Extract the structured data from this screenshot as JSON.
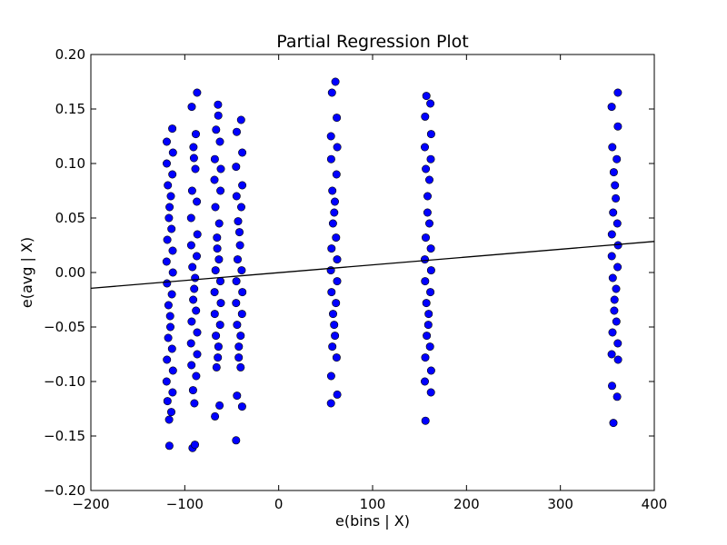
{
  "chart_data": {
    "type": "scatter",
    "title": "Partial Regression Plot",
    "xlabel": "e(bins | X)",
    "ylabel": "e(avg | X)",
    "xlim": [
      -200,
      400
    ],
    "ylim": [
      -0.2,
      0.2
    ],
    "x_ticks": [
      -200,
      -100,
      0,
      100,
      200,
      300,
      400
    ],
    "y_ticks": [
      -0.2,
      -0.15,
      -0.1,
      -0.05,
      0.0,
      0.05,
      0.1,
      0.15,
      0.2
    ],
    "x_tick_labels": [
      "−200",
      "−100",
      "0",
      "100",
      "200",
      "300",
      "400"
    ],
    "y_tick_labels": [
      "−0.20",
      "−0.15",
      "−0.10",
      "−0.05",
      "0.00",
      "0.05",
      "0.10",
      "0.15",
      "0.20"
    ],
    "grid": false,
    "legend": "none",
    "marker_color": "#0000ff",
    "fit_line": {
      "x": [
        -200,
        400
      ],
      "y": [
        -0.0145,
        0.0285
      ],
      "color": "#000000"
    },
    "series": [
      {
        "x_center": -116,
        "y_min": -0.159,
        "y_max": 0.132,
        "y_points": [
          -0.159,
          -0.135,
          -0.128,
          -0.118,
          -0.11,
          -0.1,
          -0.09,
          -0.08,
          -0.07,
          -0.06,
          -0.05,
          -0.04,
          -0.03,
          -0.02,
          -0.01,
          0.0,
          0.01,
          0.02,
          0.03,
          0.04,
          0.05,
          0.06,
          0.07,
          0.08,
          0.09,
          0.1,
          0.11,
          0.12,
          0.132
        ]
      },
      {
        "x_center": -90,
        "y_min": -0.161,
        "y_max": 0.165,
        "y_points": [
          -0.161,
          -0.158,
          -0.12,
          -0.108,
          -0.095,
          -0.085,
          -0.075,
          -0.065,
          -0.055,
          -0.045,
          -0.035,
          -0.025,
          -0.015,
          -0.005,
          0.005,
          0.015,
          0.025,
          0.035,
          0.05,
          0.065,
          0.075,
          0.095,
          0.105,
          0.115,
          0.127,
          0.152,
          0.165
        ]
      },
      {
        "x_center": -65,
        "y_min": -0.132,
        "y_max": 0.154,
        "y_points": [
          -0.132,
          -0.122,
          -0.087,
          -0.078,
          -0.068,
          -0.058,
          -0.048,
          -0.038,
          -0.028,
          -0.018,
          -0.008,
          0.002,
          0.012,
          0.022,
          0.032,
          0.045,
          0.06,
          0.075,
          0.085,
          0.095,
          0.104,
          0.12,
          0.131,
          0.144,
          0.154
        ]
      },
      {
        "x_center": -42,
        "y_min": -0.154,
        "y_max": 0.14,
        "y_points": [
          -0.154,
          -0.123,
          -0.113,
          -0.087,
          -0.078,
          -0.068,
          -0.058,
          -0.048,
          -0.038,
          -0.028,
          -0.018,
          -0.008,
          0.002,
          0.012,
          0.025,
          0.037,
          0.047,
          0.06,
          0.07,
          0.08,
          0.097,
          0.11,
          0.129,
          0.14
        ]
      },
      {
        "x_center": 59,
        "y_min": -0.12,
        "y_max": 0.175,
        "y_points": [
          -0.12,
          -0.112,
          -0.095,
          -0.078,
          -0.068,
          -0.058,
          -0.048,
          -0.038,
          -0.028,
          -0.018,
          -0.008,
          0.002,
          0.012,
          0.022,
          0.032,
          0.045,
          0.055,
          0.065,
          0.075,
          0.09,
          0.104,
          0.115,
          0.125,
          0.142,
          0.165,
          0.175
        ]
      },
      {
        "x_center": 159,
        "y_min": -0.136,
        "y_max": 0.162,
        "y_points": [
          -0.136,
          -0.11,
          -0.1,
          -0.09,
          -0.078,
          -0.068,
          -0.058,
          -0.048,
          -0.038,
          -0.028,
          -0.018,
          -0.008,
          0.002,
          0.012,
          0.022,
          0.032,
          0.045,
          0.055,
          0.07,
          0.085,
          0.095,
          0.104,
          0.115,
          0.127,
          0.143,
          0.155,
          0.162
        ]
      },
      {
        "x_center": 358,
        "y_min": -0.138,
        "y_max": 0.165,
        "y_points": [
          -0.138,
          -0.114,
          -0.104,
          -0.08,
          -0.075,
          -0.065,
          -0.055,
          -0.045,
          -0.035,
          -0.025,
          -0.015,
          -0.005,
          0.005,
          0.015,
          0.025,
          0.035,
          0.045,
          0.055,
          0.068,
          0.08,
          0.092,
          0.104,
          0.115,
          0.134,
          0.152,
          0.165
        ]
      }
    ]
  }
}
